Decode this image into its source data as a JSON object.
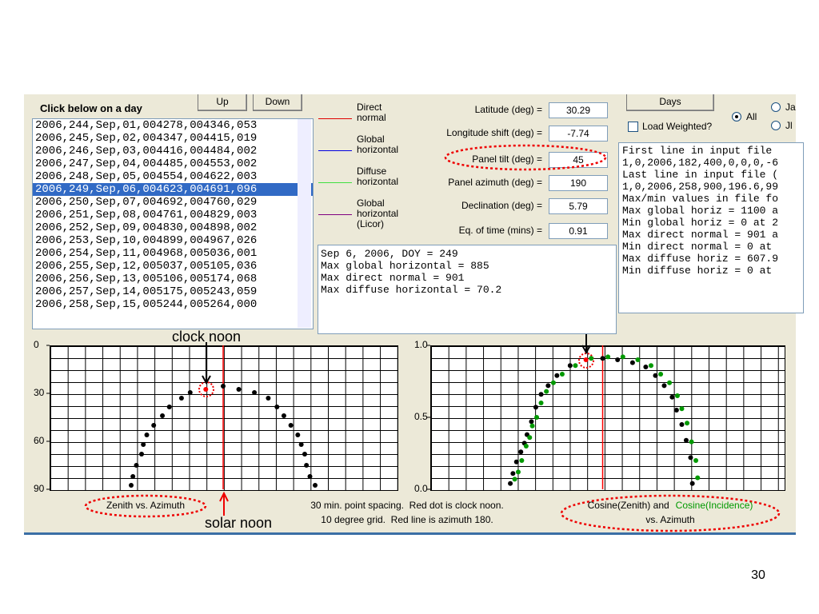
{
  "window": {
    "list_header": "Click below on a day",
    "up": "Up",
    "down": "Down",
    "days": "Days",
    "load_weighted": "Load Weighted?",
    "radio_all": "All",
    "radio_ja": "Ja",
    "radio_jl": "Jl",
    "list_items": [
      "2006,244,Sep,01,004278,004346,053",
      "2006,245,Sep,02,004347,004415,019",
      "2006,246,Sep,03,004416,004484,002",
      "2006,247,Sep,04,004485,004553,002",
      "2006,248,Sep,05,004554,004622,003",
      "2006,249,Sep,06,004623,004691,096",
      "2006,250,Sep,07,004692,004760,029",
      "2006,251,Sep,08,004761,004829,003",
      "2006,252,Sep,09,004830,004898,002",
      "2006,253,Sep,10,004899,004967,026",
      "2006,254,Sep,11,004968,005036,001",
      "2006,255,Sep,12,005037,005105,036",
      "2006,256,Sep,13,005106,005174,068",
      "2006,257,Sep,14,005175,005243,059",
      "2006,258,Sep,15,005244,005264,000"
    ],
    "legend": [
      {
        "label": "Direct normal",
        "color": "#e00000"
      },
      {
        "label": "Global horizontal",
        "color": "#0000e0"
      },
      {
        "label": "Diffuse horizontal",
        "color": "#40e040"
      },
      {
        "label": "Global horizontal (Licor)",
        "color": "#800080"
      }
    ],
    "fields": [
      {
        "label": "Latitude (deg) =",
        "value": 30.29
      },
      {
        "label": "Longitude shift (deg) =",
        "value": -7.74
      },
      {
        "label": "Panel tilt (deg) =",
        "value": 45
      },
      {
        "label": "Panel azimuth (deg) =",
        "value": 190
      },
      {
        "label": "Declination (deg) =",
        "value": 5.79
      },
      {
        "label": "Eq. of time (mins) =",
        "value": 0.91
      }
    ],
    "info_lines": [
      "Sep 6, 2006, DOY = 249",
      "Max global horizontal = 885",
      "Max direct normal = 901",
      "Max diffuse horizontal = 70.2"
    ],
    "file_lines": [
      "First line in input file",
      "1,0,2006,182,400,0,0,0,-6",
      "Last line in input file (",
      "1,0,2006,258,900,196.6,99",
      "Max/min values in file fo",
      "Max global horiz = 1100 a",
      "Min global horiz = 0 at 2",
      "Max direct normal = 901 a",
      "Min direct normal = 0 at",
      "Max diffuse horiz = 607.9",
      "Min diffuse horiz = 0 at"
    ],
    "annotations": {
      "clock_noon": "clock noon",
      "solar_noon": "solar noon",
      "note1": "30 min. point spacing.  Red dot is clock noon.",
      "note2": "10 degree grid.  Red line is azimuth 180."
    },
    "page_number": "30"
  },
  "chart_data": [
    {
      "type": "scatter",
      "caption": "Zenith vs. Azimuth",
      "xlim": [
        80,
        280
      ],
      "ylim": [
        0,
        90
      ],
      "y_reversed": true,
      "yticks": [
        0,
        30,
        60,
        90
      ],
      "grid": true,
      "reference_line": {
        "x": 180,
        "color": "#ff0000"
      },
      "series": [
        {
          "color": "#000000",
          "x": [
            127,
            128,
            130,
            133,
            134,
            136,
            140,
            145,
            149,
            156,
            161,
            180,
            189,
            198,
            206,
            211,
            215,
            219,
            223,
            225,
            227,
            228,
            230,
            233
          ],
          "values": [
            87.5,
            82,
            75,
            68,
            62,
            56,
            50,
            44,
            38.5,
            33,
            29.5,
            25.5,
            27.5,
            29.5,
            33,
            38.5,
            44,
            50,
            56,
            62,
            68,
            75,
            82,
            87.5
          ]
        },
        {
          "color": "#ff0000",
          "x": [
            170
          ],
          "values": [
            27.5
          ]
        }
      ]
    },
    {
      "type": "scatter",
      "caption": "Cosine(Zenith) and",
      "caption2": "Cosine(Incidence)",
      "caption3": "vs. Azimuth",
      "caption2_color": "#009900",
      "xlim": [
        82,
        283
      ],
      "ylim": [
        0,
        1
      ],
      "yticks": [
        {
          "value": 0,
          "label": "0.0"
        },
        {
          "value": 0.5,
          "label": "0.5"
        },
        {
          "value": 1,
          "label": "1.0"
        }
      ],
      "grid": true,
      "reference_line": {
        "x": 180,
        "color": "#ff0000"
      },
      "series": [
        {
          "color": "#000000",
          "x": [
            127.5,
            129,
            131,
            133.5,
            135.5,
            137,
            139.5,
            142,
            145,
            149,
            154,
            161.5,
            180,
            188.5,
            197,
            204.5,
            210,
            215,
            219.5,
            222,
            225,
            227.5,
            230,
            231
          ],
          "values": [
            0.04,
            0.11,
            0.19,
            0.26,
            0.32,
            0.38,
            0.47,
            0.57,
            0.66,
            0.72,
            0.79,
            0.86,
            0.91,
            0.9,
            0.88,
            0.85,
            0.79,
            0.72,
            0.64,
            0.55,
            0.45,
            0.34,
            0.22,
            0.04
          ]
        },
        {
          "color": "#009900",
          "x": [
            130,
            132,
            134,
            136.5,
            138.5,
            140,
            142.5,
            145,
            148,
            152,
            157,
            164.5,
            173.5,
            183,
            191.5,
            200,
            207.5,
            213,
            218,
            222.5,
            225,
            228,
            230.5,
            233,
            234
          ],
          "values": [
            0.07,
            0.12,
            0.2,
            0.3,
            0.36,
            0.44,
            0.5,
            0.6,
            0.68,
            0.74,
            0.8,
            0.86,
            0.91,
            0.92,
            0.92,
            0.9,
            0.86,
            0.8,
            0.74,
            0.65,
            0.56,
            0.46,
            0.33,
            0.2,
            0.08
          ]
        },
        {
          "color": "#ff0000",
          "x": [
            170.5
          ],
          "values": [
            0.9
          ]
        }
      ]
    }
  ]
}
